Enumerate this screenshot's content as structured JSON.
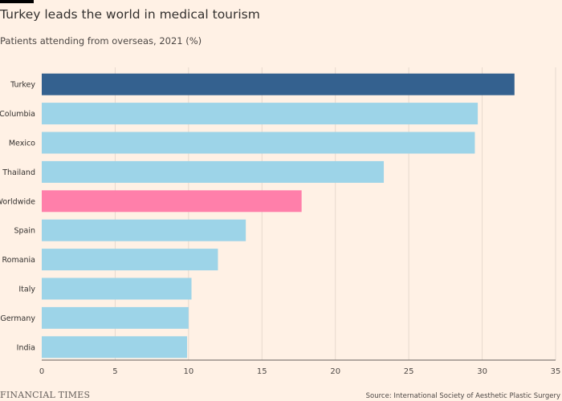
{
  "title": "Turkey leads the world in medical tourism",
  "subtitle": "Patients attending from overseas, 2021 (%)",
  "source": "Source: International Society of Aesthetic Plastic Surgery",
  "logo": "FINANCIAL TIMES",
  "chart_data": {
    "type": "bar",
    "orientation": "horizontal",
    "categories": [
      "Turkey",
      "Columbia",
      "Mexico",
      "Thailand",
      "Worldwide",
      "Spain",
      "Romania",
      "Italy",
      "Germany",
      "India"
    ],
    "values": [
      32.2,
      29.7,
      29.5,
      23.3,
      17.7,
      13.9,
      12.0,
      10.2,
      10.0,
      9.9
    ],
    "xlim": [
      0,
      35
    ],
    "xticks": [
      0,
      5,
      10,
      15,
      20,
      25,
      30,
      35
    ],
    "grid": "vertical",
    "colors": {
      "default": "#9DD4E8",
      "highlight": "#34618F",
      "benchmark": "#FF7FAA",
      "grid": "#E6D9CE",
      "axis": "#66605C"
    },
    "highlight": "Turkey",
    "benchmark": "Worldwide"
  }
}
